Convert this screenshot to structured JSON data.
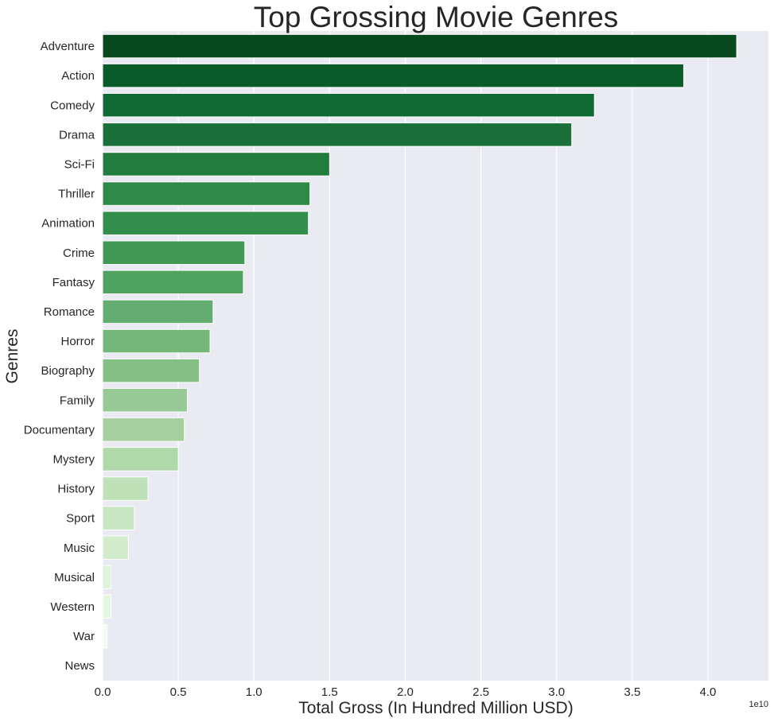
{
  "chart_data": {
    "type": "bar",
    "orientation": "horizontal",
    "title": "Top Grossing Movie Genres",
    "xlabel": "Total Gross (In Hundred Million USD)",
    "ylabel": "Genres",
    "x_offset_label": "1e10",
    "xlim": [
      0,
      4.4
    ],
    "xticks": [
      "0.0",
      "0.5",
      "1.0",
      "1.5",
      "2.0",
      "2.5",
      "3.0",
      "3.5",
      "4.0"
    ],
    "grid": true,
    "categories": [
      "Adventure",
      "Action",
      "Comedy",
      "Drama",
      "Sci-Fi",
      "Thriller",
      "Animation",
      "Crime",
      "Fantasy",
      "Romance",
      "Horror",
      "Biography",
      "Family",
      "Documentary",
      "Mystery",
      "History",
      "Sport",
      "Music",
      "Musical",
      "Western",
      "War",
      "News"
    ],
    "values": [
      4.19,
      3.84,
      3.25,
      3.1,
      1.5,
      1.37,
      1.36,
      0.94,
      0.93,
      0.73,
      0.71,
      0.64,
      0.56,
      0.54,
      0.5,
      0.3,
      0.21,
      0.17,
      0.055,
      0.055,
      0.03,
      0.0
    ],
    "colors": [
      "#08481d",
      "#095c2a",
      "#0f6a34",
      "#1a7038",
      "#217c3e",
      "#2e8a47",
      "#338e4b",
      "#419a53",
      "#4fa35e",
      "#64ad70",
      "#75b779",
      "#84c085",
      "#96c995",
      "#a5d09d",
      "#b0d9aa",
      "#bfe1b8",
      "#c9e6c2",
      "#d2ebcb",
      "#e0f3db",
      "#e4f5e0",
      "#f4fbf1",
      "#f7fcf5"
    ]
  },
  "colors": {
    "plot_background": "#eaeaf2",
    "grid": "#ffffff",
    "text": "#262626"
  }
}
